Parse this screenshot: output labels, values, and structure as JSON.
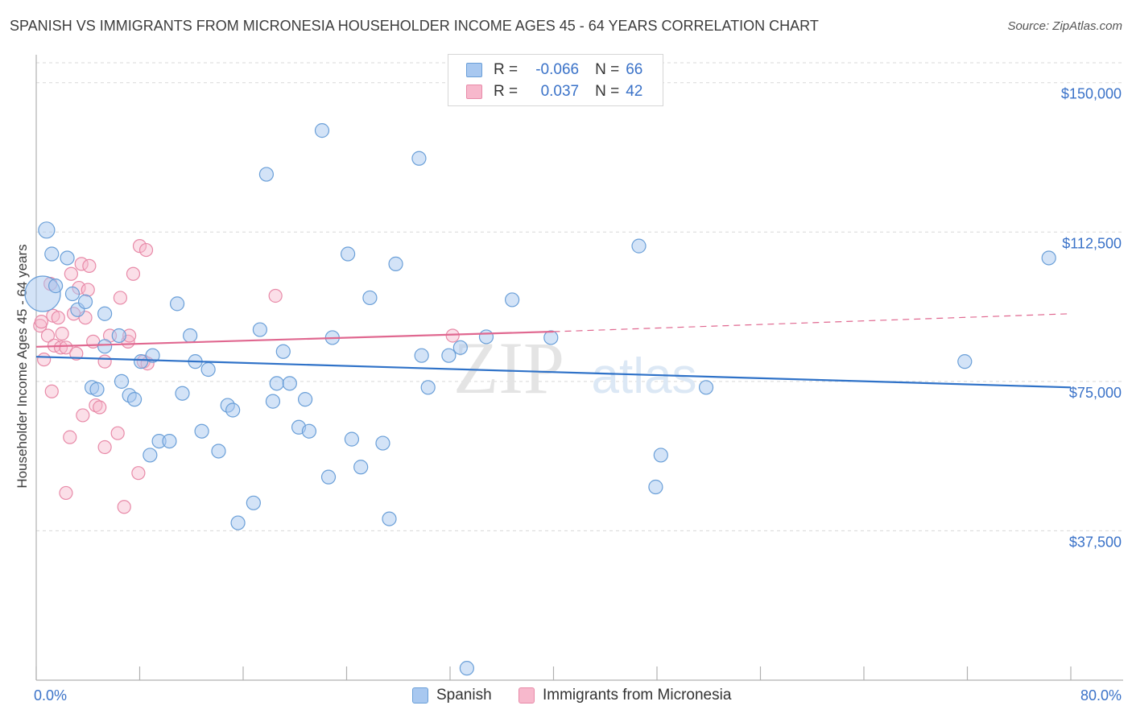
{
  "title": "SPANISH VS IMMIGRANTS FROM MICRONESIA HOUSEHOLDER INCOME AGES 45 - 64 YEARS CORRELATION CHART",
  "source": "Source: ZipAtlas.com",
  "watermark": {
    "zip": "ZIP",
    "atlas": "atlas"
  },
  "legend": {
    "rows": [
      {
        "r_label": "R =",
        "r_value": "-0.066",
        "n_label": "N =",
        "n_value": "66",
        "color": "#a8c8f0"
      },
      {
        "r_label": "R =",
        "r_value": "0.037",
        "n_label": "N =",
        "n_value": "42",
        "color": "#f7b8cc"
      }
    ]
  },
  "bottom_legend": {
    "spanish": "Spanish",
    "micronesia": "Immigrants from Micronesia"
  },
  "colors": {
    "spanish_fill": "#a8c8f0",
    "spanish_stroke": "#6a9fd8",
    "spanish_line": "#2f72c8",
    "micro_fill": "#f7b8cc",
    "micro_stroke": "#e88aa8",
    "micro_line": "#e06890",
    "tick_text": "#3a72c8",
    "grid": "#d8d8d8"
  },
  "chart_data": {
    "type": "scatter",
    "title": "SPANISH VS IMMIGRANTS FROM MICRONESIA HOUSEHOLDER INCOME AGES 45 - 64 YEARS CORRELATION CHART",
    "xlabel": "",
    "ylabel": "Householder Income Ages 45 - 64 years",
    "xlim": [
      0,
      80
    ],
    "ylim": [
      0,
      155000
    ],
    "x_tick_labels": [
      "0.0%",
      "80.0%"
    ],
    "y_ticks": [
      37500,
      75000,
      112500,
      150000
    ],
    "y_tick_labels": [
      "$37,500",
      "$75,000",
      "$112,500",
      "$150,000"
    ],
    "series": [
      {
        "name": "Spanish",
        "points": [
          [
            0.5,
            97000
          ],
          [
            0.8,
            113000
          ],
          [
            1.2,
            107000
          ],
          [
            1.5,
            99000
          ],
          [
            2.4,
            106000
          ],
          [
            2.8,
            97000
          ],
          [
            3.2,
            93000
          ],
          [
            3.8,
            95000
          ],
          [
            5.3,
            92000
          ],
          [
            6.4,
            86500
          ],
          [
            5.3,
            83800
          ],
          [
            4.3,
            73500
          ],
          [
            4.7,
            73000
          ],
          [
            6.6,
            75000
          ],
          [
            7.2,
            71500
          ],
          [
            7.6,
            70500
          ],
          [
            8.1,
            80000
          ],
          [
            9.0,
            81500
          ],
          [
            9.5,
            60000
          ],
          [
            8.8,
            56500
          ],
          [
            10.3,
            60000
          ],
          [
            10.9,
            94500
          ],
          [
            11.3,
            72000
          ],
          [
            11.9,
            86500
          ],
          [
            12.3,
            80000
          ],
          [
            12.8,
            62500
          ],
          [
            13.3,
            78000
          ],
          [
            14.1,
            57500
          ],
          [
            14.8,
            69000
          ],
          [
            15.2,
            67800
          ],
          [
            15.6,
            39500
          ],
          [
            16.8,
            44500
          ],
          [
            17.3,
            88000
          ],
          [
            17.8,
            127000
          ],
          [
            18.3,
            70000
          ],
          [
            18.6,
            74500
          ],
          [
            19.1,
            82500
          ],
          [
            19.6,
            74500
          ],
          [
            20.3,
            63500
          ],
          [
            20.8,
            70500
          ],
          [
            21.1,
            62500
          ],
          [
            22.1,
            138000
          ],
          [
            22.6,
            51000
          ],
          [
            22.9,
            86000
          ],
          [
            24.1,
            107000
          ],
          [
            24.4,
            60500
          ],
          [
            25.1,
            53500
          ],
          [
            25.8,
            96000
          ],
          [
            26.8,
            59500
          ],
          [
            27.3,
            40500
          ],
          [
            27.8,
            104500
          ],
          [
            29.6,
            131000
          ],
          [
            29.8,
            81500
          ],
          [
            30.3,
            73500
          ],
          [
            31.9,
            81500
          ],
          [
            32.8,
            83500
          ],
          [
            34.8,
            86200
          ],
          [
            33.3,
            3000
          ],
          [
            36.8,
            95500
          ],
          [
            39.8,
            86000
          ],
          [
            46.6,
            109000
          ],
          [
            47.9,
            48500
          ],
          [
            48.3,
            56500
          ],
          [
            51.8,
            73500
          ],
          [
            71.8,
            80000
          ],
          [
            78.3,
            106000
          ]
        ],
        "trend": {
          "x": [
            0,
            80
          ],
          "y": [
            81200,
            73500
          ]
        }
      },
      {
        "name": "Immigrants from Micronesia",
        "points": [
          [
            0.3,
            89000
          ],
          [
            0.4,
            90000
          ],
          [
            0.6,
            80500
          ],
          [
            0.9,
            86500
          ],
          [
            1.1,
            99500
          ],
          [
            1.3,
            91500
          ],
          [
            1.4,
            84000
          ],
          [
            1.2,
            72500
          ],
          [
            1.7,
            91000
          ],
          [
            1.9,
            83500
          ],
          [
            2.0,
            87000
          ],
          [
            2.3,
            83500
          ],
          [
            2.6,
            61000
          ],
          [
            2.3,
            47000
          ],
          [
            2.7,
            102000
          ],
          [
            2.9,
            92000
          ],
          [
            3.1,
            82000
          ],
          [
            3.3,
            98500
          ],
          [
            3.5,
            104500
          ],
          [
            3.8,
            91000
          ],
          [
            4.0,
            98000
          ],
          [
            4.1,
            104000
          ],
          [
            4.6,
            69000
          ],
          [
            4.9,
            68500
          ],
          [
            4.4,
            85000
          ],
          [
            5.3,
            80000
          ],
          [
            5.3,
            58500
          ],
          [
            5.7,
            86500
          ],
          [
            6.3,
            62000
          ],
          [
            6.8,
            43500
          ],
          [
            6.5,
            96000
          ],
          [
            7.1,
            85000
          ],
          [
            7.2,
            86500
          ],
          [
            7.5,
            102000
          ],
          [
            7.9,
            52000
          ],
          [
            8.0,
            109000
          ],
          [
            8.5,
            108000
          ],
          [
            8.3,
            80000
          ],
          [
            8.6,
            79500
          ],
          [
            18.5,
            96500
          ],
          [
            32.2,
            86500
          ],
          [
            3.6,
            66500
          ]
        ],
        "trend": {
          "x": [
            0,
            40
          ],
          "y": [
            83700,
            87500
          ],
          "dashed_extension": {
            "x": [
              40,
              80
            ],
            "y": [
              87500,
              92000
            ]
          }
        }
      }
    ]
  }
}
